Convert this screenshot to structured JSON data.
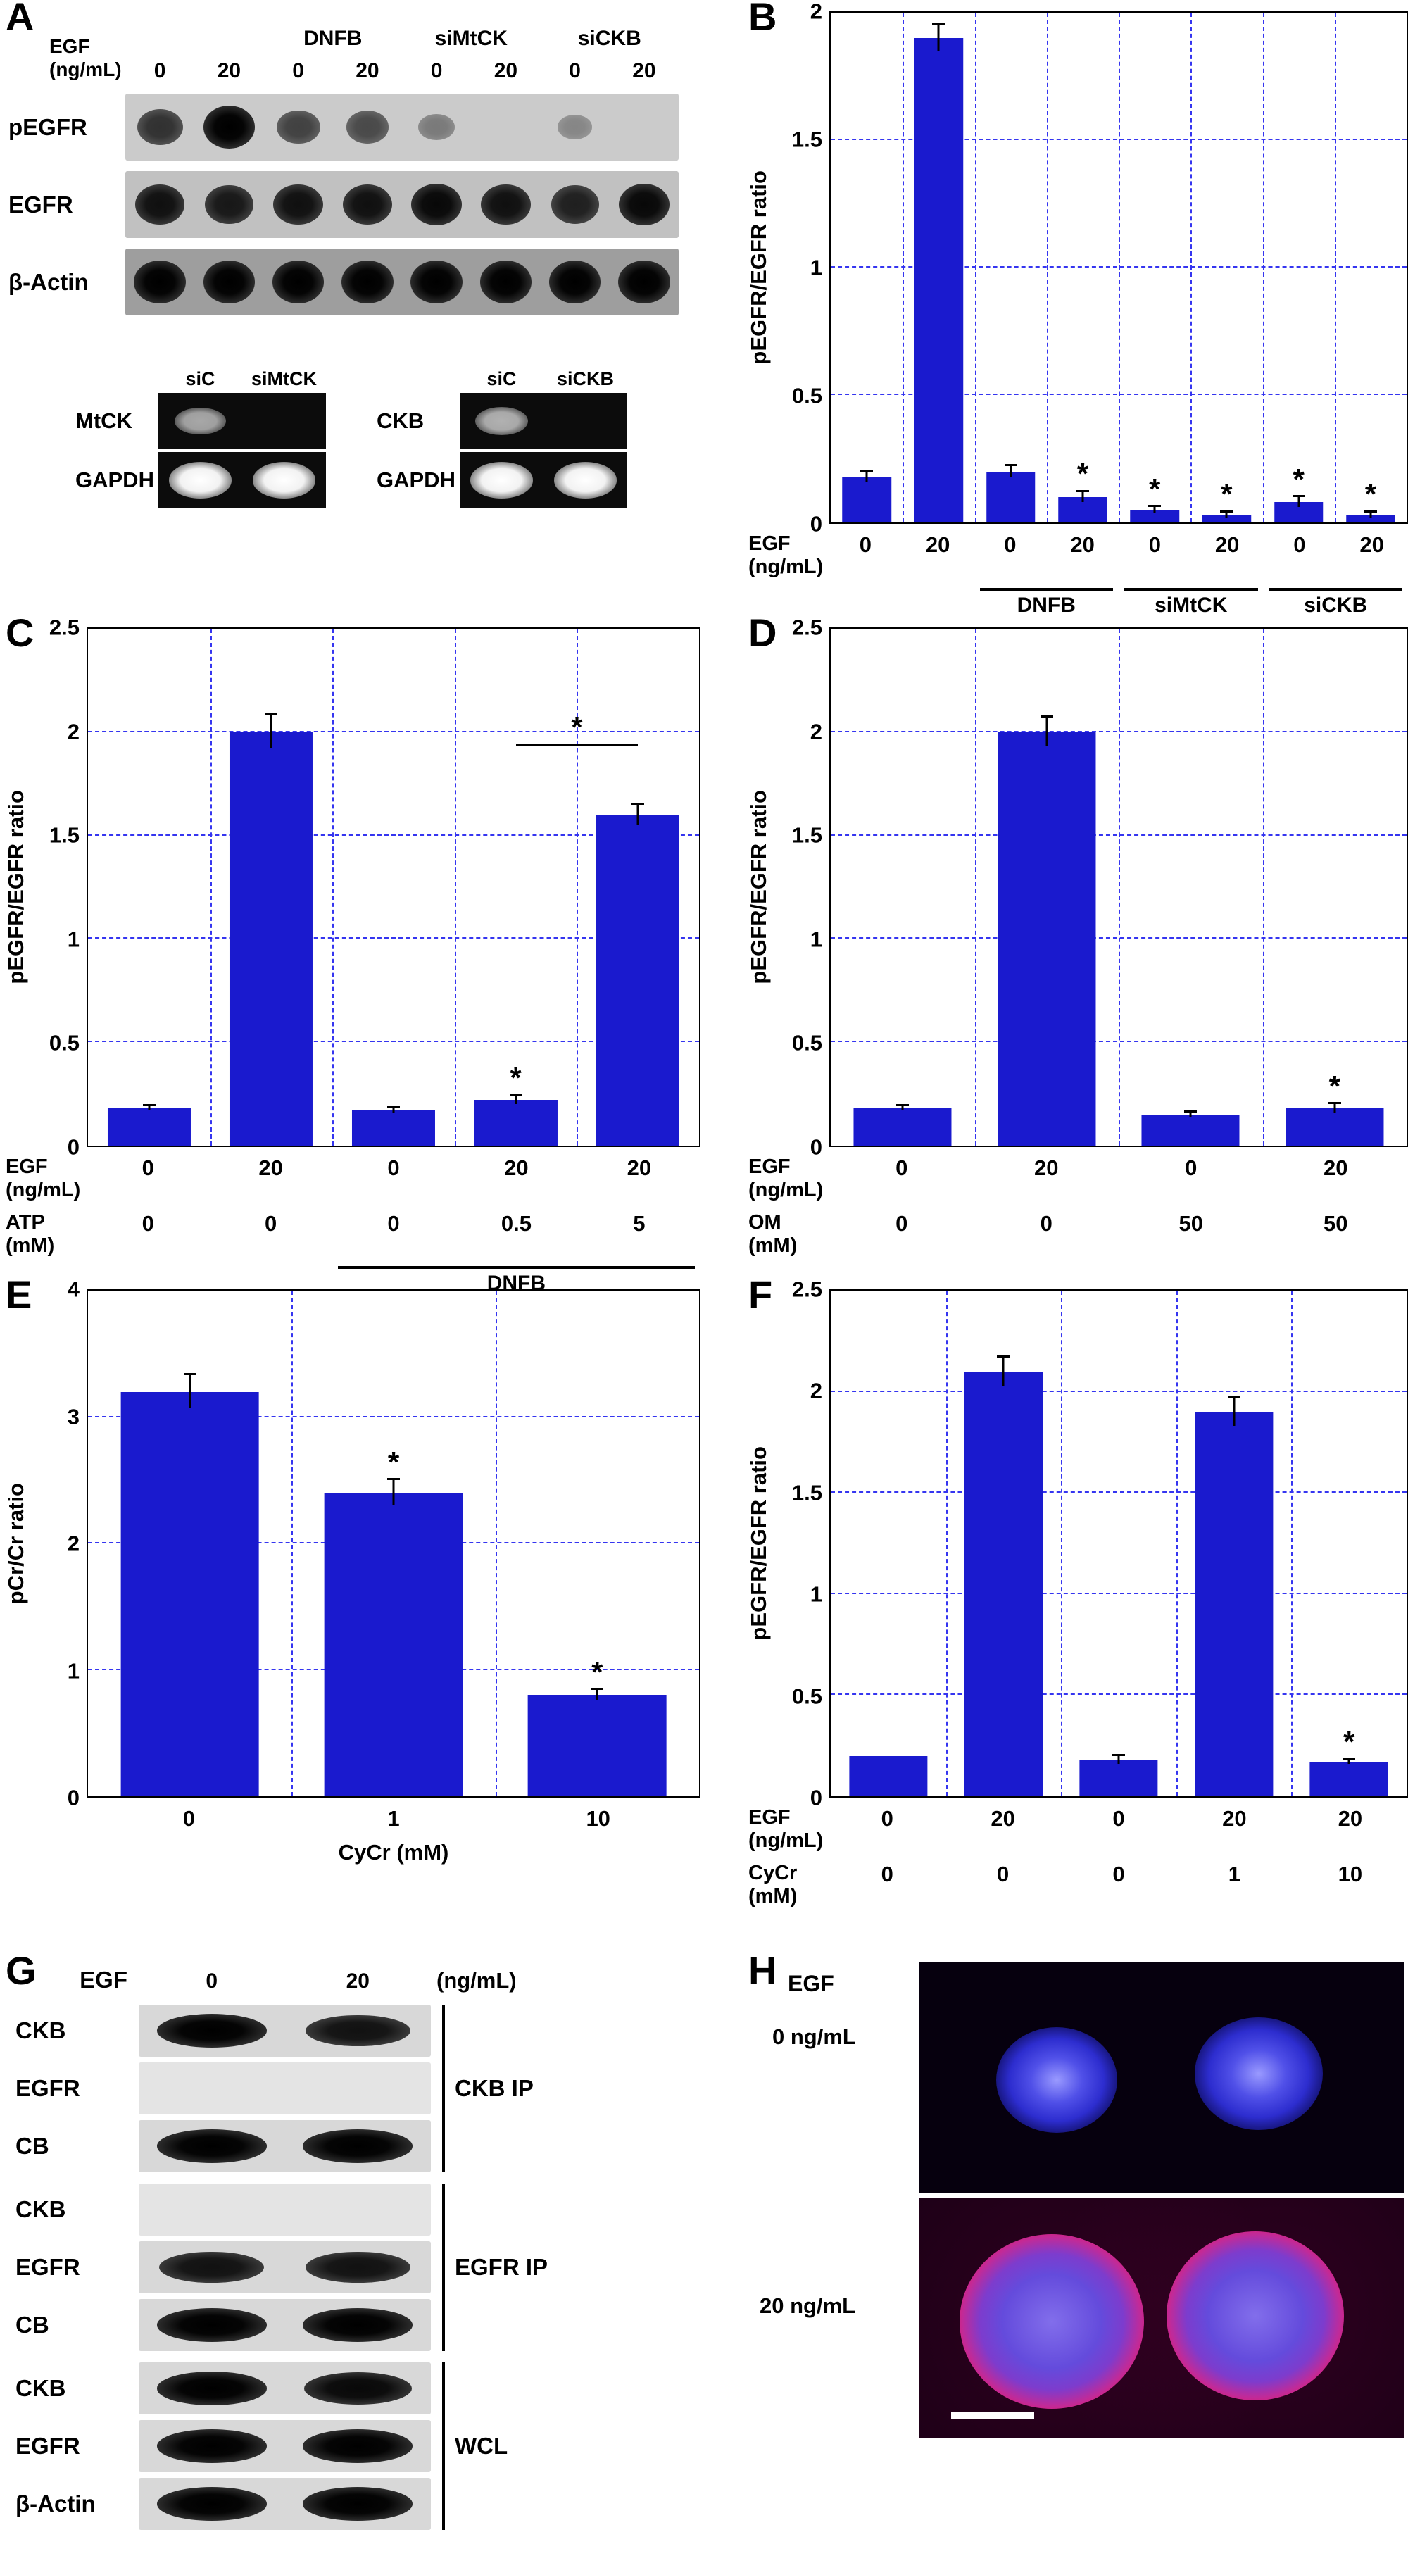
{
  "figure": {
    "sig_symbol": "*"
  },
  "colors": {
    "bar_blue": "#1a1ace",
    "grid_blue": "#3535f0",
    "nucleus_blue": "#3a3ae0",
    "stain_magenta": "#e0218a"
  },
  "panel_labels": {
    "A": "A",
    "B": "B",
    "C": "C",
    "D": "D",
    "E": "E",
    "F": "F",
    "G": "G",
    "H": "H"
  },
  "panelA": {
    "egf_label": "EGF",
    "egf_unit": "(ng/mL)",
    "group_labels": [
      "DNFB",
      "siMtCK",
      "siCKB"
    ],
    "lane_doses": [
      "0",
      "20",
      "0",
      "20",
      "0",
      "20",
      "0",
      "20"
    ],
    "rows": [
      {
        "name": "pEGFR",
        "bands": [
          0.7,
          1,
          0.6,
          0.55,
          0.25,
          0,
          0.18,
          0
        ]
      },
      {
        "name": "EGFR",
        "bands": [
          0.9,
          0.85,
          0.9,
          0.9,
          0.95,
          0.9,
          0.8,
          0.95
        ]
      },
      {
        "name": "β-Actin",
        "bands": [
          1,
          1,
          1,
          1,
          1,
          1,
          1,
          1
        ]
      }
    ],
    "gels": [
      {
        "lane_labels": [
          "siC",
          "siMtCK"
        ],
        "rows": [
          {
            "name": "MtCK",
            "bands": [
              0.55,
              0
            ]
          },
          {
            "name": "GAPDH",
            "bands": [
              1,
              1
            ]
          }
        ]
      },
      {
        "lane_labels": [
          "siC",
          "siCKB"
        ],
        "rows": [
          {
            "name": "CKB",
            "bands": [
              0.6,
              0
            ]
          },
          {
            "name": "GAPDH",
            "bands": [
              1,
              1
            ]
          }
        ]
      }
    ]
  },
  "panelG": {
    "egf_label": "EGF",
    "doses": [
      "0",
      "20"
    ],
    "unit": "(ng/mL)",
    "groups": [
      {
        "name": "CKB IP",
        "rows": [
          {
            "name": "CKB",
            "bands": [
              1,
              0.9
            ]
          },
          {
            "name": "EGFR",
            "bands": [
              0,
              0
            ]
          },
          {
            "name": "CB",
            "bands": [
              1,
              1
            ]
          }
        ]
      },
      {
        "name": "EGFR IP",
        "rows": [
          {
            "name": "CKB",
            "bands": [
              0,
              0
            ]
          },
          {
            "name": "EGFR",
            "bands": [
              0.9,
              0.9
            ]
          },
          {
            "name": "CB",
            "bands": [
              1,
              1
            ]
          }
        ]
      },
      {
        "name": "WCL",
        "rows": [
          {
            "name": "CKB",
            "bands": [
              1,
              0.95
            ]
          },
          {
            "name": "EGFR",
            "bands": [
              1,
              1
            ]
          },
          {
            "name": "β-Actin",
            "bands": [
              1,
              1
            ]
          }
        ]
      }
    ]
  },
  "panelH": {
    "egf_label": "EGF",
    "conditions": [
      "0 ng/mL",
      "20 ng/mL"
    ]
  },
  "chart_data": [
    {
      "id": "B",
      "type": "bar",
      "title": "",
      "ylabel": "pEGFR/EGFR ratio",
      "ylim": [
        0,
        2
      ],
      "yticks": [
        0,
        0.5,
        1,
        1.5,
        2
      ],
      "grid": "dashed-blue",
      "categories": [
        "0",
        "20",
        "0",
        "20",
        "0",
        "20",
        "0",
        "20"
      ],
      "values": [
        0.18,
        1.9,
        0.2,
        0.1,
        0.05,
        0.03,
        0.08,
        0.03
      ],
      "errors": [
        0.02,
        0.05,
        0.02,
        0.02,
        0.01,
        0.01,
        0.02,
        0.01
      ],
      "sig": [
        false,
        false,
        false,
        true,
        true,
        true,
        true,
        true
      ],
      "x_rows": [
        {
          "header": "EGF\n(ng/mL)",
          "values": [
            "0",
            "20",
            "0",
            "20",
            "0",
            "20",
            "0",
            "20"
          ]
        }
      ],
      "group_labels": [
        {
          "label": "DNFB",
          "start": 2,
          "end": 3
        },
        {
          "label": "siMtCK",
          "start": 4,
          "end": 5
        },
        {
          "label": "siCKB",
          "start": 6,
          "end": 7
        }
      ]
    },
    {
      "id": "C",
      "type": "bar",
      "title": "",
      "ylabel": "pEGFR/EGFR ratio",
      "ylim": [
        0,
        2.5
      ],
      "yticks": [
        0,
        0.5,
        1,
        1.5,
        2,
        2.5
      ],
      "grid": "dashed-blue",
      "categories": [
        "0",
        "20",
        "0",
        "20",
        "20"
      ],
      "values": [
        0.18,
        2.0,
        0.17,
        0.22,
        1.6
      ],
      "errors": [
        0.01,
        0.08,
        0.01,
        0.02,
        0.05
      ],
      "sig": [
        false,
        false,
        false,
        true,
        false
      ],
      "bracket": {
        "start": 3,
        "end": 4,
        "y": 1.93
      },
      "x_rows": [
        {
          "header": "EGF\n(ng/mL)",
          "values": [
            "0",
            "20",
            "0",
            "20",
            "20"
          ]
        },
        {
          "header": "ATP (mM)",
          "values": [
            "0",
            "0",
            "0",
            "0.5",
            "5"
          ]
        }
      ],
      "group_labels": [
        {
          "label": "DNFB",
          "start": 2,
          "end": 4
        }
      ]
    },
    {
      "id": "D",
      "type": "bar",
      "title": "",
      "ylabel": "pEGFR/EGFR ratio",
      "ylim": [
        0,
        2.5
      ],
      "yticks": [
        0,
        0.5,
        1,
        1.5,
        2,
        2.5
      ],
      "grid": "dashed-blue",
      "categories": [
        "0",
        "20",
        "0",
        "20"
      ],
      "values": [
        0.18,
        2.0,
        0.15,
        0.18
      ],
      "errors": [
        0.01,
        0.07,
        0.01,
        0.02
      ],
      "sig": [
        false,
        false,
        false,
        true
      ],
      "x_rows": [
        {
          "header": "EGF\n(ng/mL)",
          "values": [
            "0",
            "20",
            "0",
            "20"
          ]
        },
        {
          "header": "OM (mM)",
          "values": [
            "0",
            "0",
            "50",
            "50"
          ]
        }
      ]
    },
    {
      "id": "E",
      "type": "bar",
      "title": "",
      "ylabel": "pCr/Cr ratio",
      "ylim": [
        0,
        4
      ],
      "yticks": [
        0,
        1,
        2,
        3,
        4
      ],
      "grid": "dashed-blue",
      "categories": [
        "0",
        "1",
        "10"
      ],
      "values": [
        3.2,
        2.4,
        0.8
      ],
      "errors": [
        0.13,
        0.1,
        0.04
      ],
      "sig": [
        false,
        true,
        true
      ],
      "x_rows": [
        {
          "header": "",
          "values": [
            "0",
            "1",
            "10"
          ]
        }
      ],
      "xlabel": "CyCr (mM)"
    },
    {
      "id": "F",
      "type": "bar",
      "title": "",
      "ylabel": "pEGFR/EGFR ratio",
      "ylim": [
        0,
        2.5
      ],
      "yticks": [
        0,
        0.5,
        1,
        1.5,
        2,
        2.5
      ],
      "grid": "dashed-blue",
      "categories": [
        "0",
        "20",
        "0",
        "20",
        "20"
      ],
      "values": [
        0.2,
        2.1,
        0.18,
        1.9,
        0.17
      ],
      "errors": [
        0,
        0.07,
        0.02,
        0.07,
        0.01
      ],
      "sig": [
        false,
        false,
        false,
        false,
        true
      ],
      "x_rows": [
        {
          "header": "EGF\n(ng/mL)",
          "values": [
            "0",
            "20",
            "0",
            "20",
            "20"
          ]
        },
        {
          "header": "CyCr\n(mM)",
          "values": [
            "0",
            "0",
            "0",
            "1",
            "10"
          ]
        }
      ]
    }
  ]
}
